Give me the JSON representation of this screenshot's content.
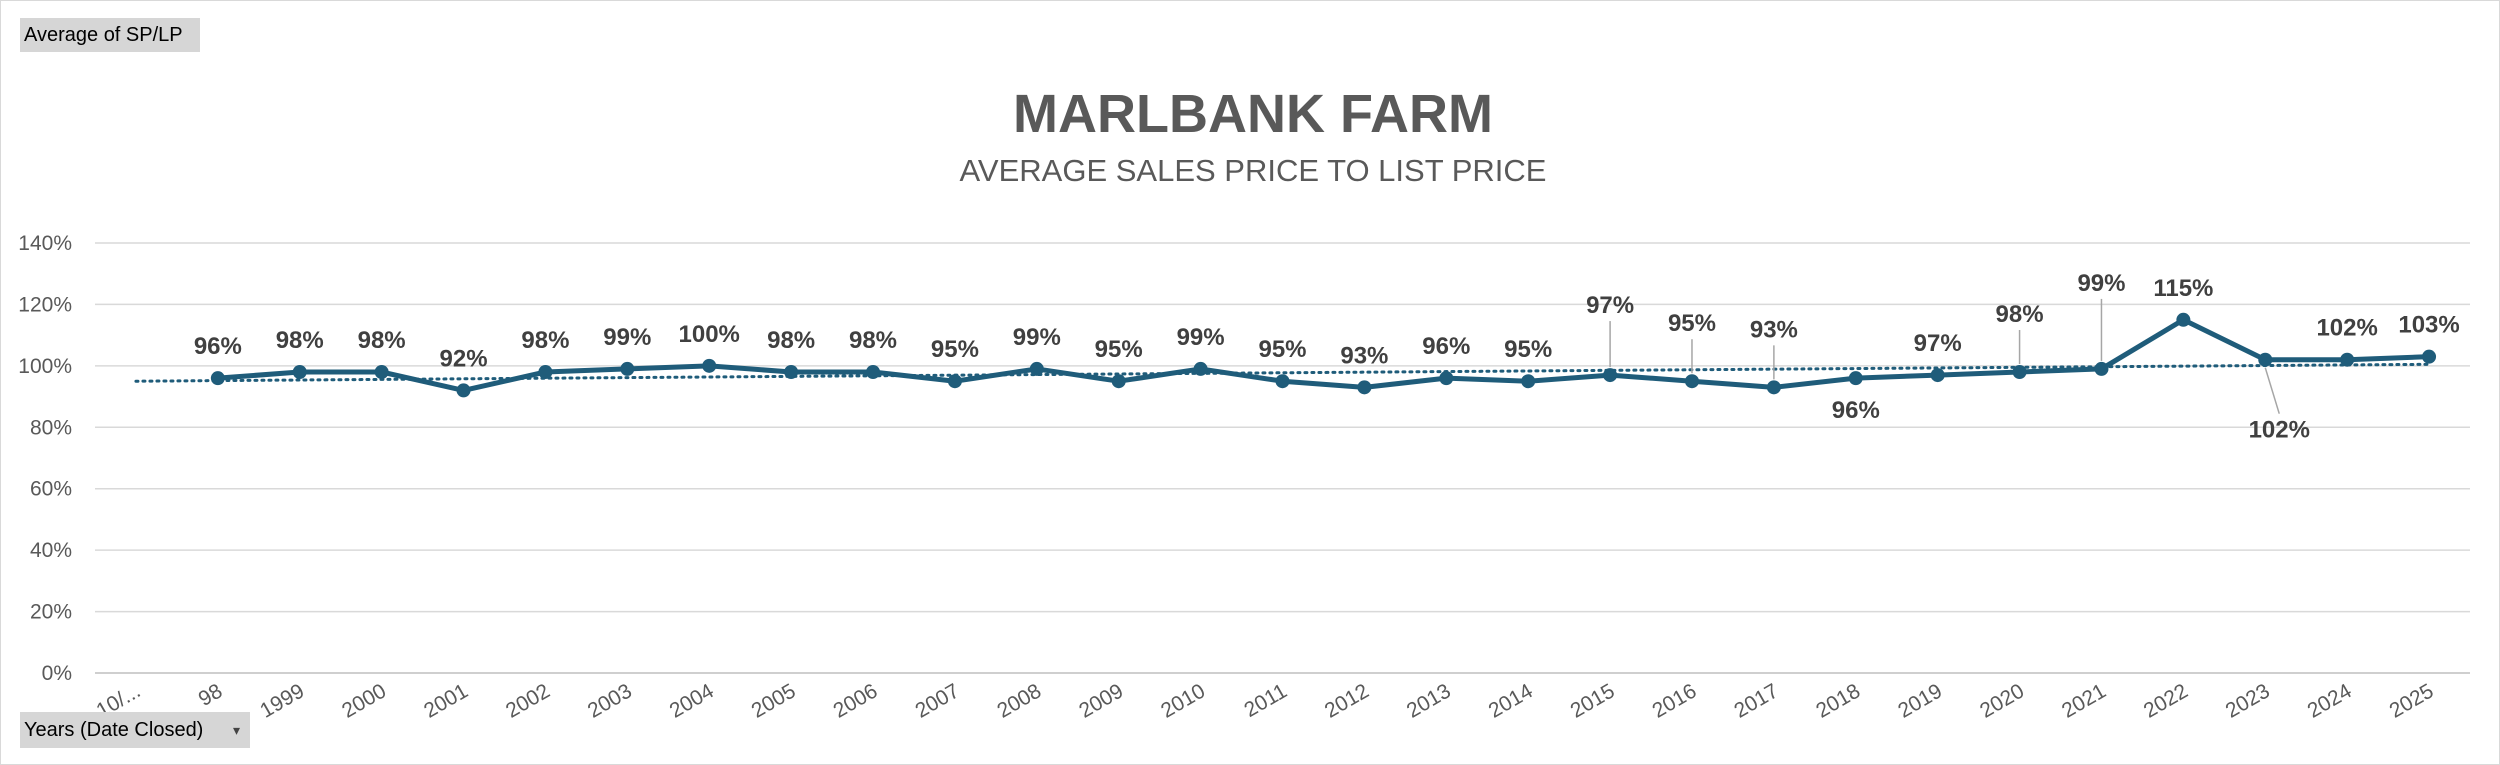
{
  "pivot": {
    "values_field": "Average of SP/LP",
    "axis_field": "Years (Date Closed)"
  },
  "chart_data": {
    "type": "line",
    "title": "MARLBANK FARM",
    "subtitle": "AVERAGE SALES PRICE TO LIST PRICE",
    "categories": [
      "10/...",
      "98",
      "1999",
      "2000",
      "2001",
      "2002",
      "2003",
      "2004",
      "2005",
      "2006",
      "2007",
      "2008",
      "2009",
      "2010",
      "2011",
      "2012",
      "2013",
      "2014",
      "2015",
      "2016",
      "2017",
      "2018",
      "2019",
      "2020",
      "2021",
      "2022",
      "2023",
      "2024",
      "2025"
    ],
    "series": [
      {
        "values": [
          null,
          96,
          98,
          98,
          92,
          98,
          99,
          100,
          98,
          98,
          95,
          99,
          95,
          99,
          95,
          93,
          96,
          95,
          97,
          95,
          93,
          96,
          97,
          98,
          99,
          115,
          102,
          102,
          103
        ],
        "data_labels": [
          "",
          "96%",
          "98%",
          "98%",
          "92%",
          "98%",
          "99%",
          "100%",
          "98%",
          "98%",
          "95%",
          "99%",
          "95%",
          "99%",
          "95%",
          "93%",
          "96%",
          "95%",
          "97%",
          "95%",
          "93%",
          "96%",
          "97%",
          "98%",
          "99%",
          "115%",
          "102%",
          "102%",
          "103%"
        ],
        "color": "#1f5c7a",
        "marker": "circle"
      }
    ],
    "trendline": {
      "type": "linear",
      "style": "dotted",
      "color": "#1f5c7a",
      "start": 95,
      "end": 100.5
    },
    "yticks": [
      "0%",
      "20%",
      "40%",
      "60%",
      "80%",
      "100%",
      "120%",
      "140%"
    ],
    "ylim": [
      0,
      140
    ],
    "grid": true,
    "legend": "none"
  }
}
